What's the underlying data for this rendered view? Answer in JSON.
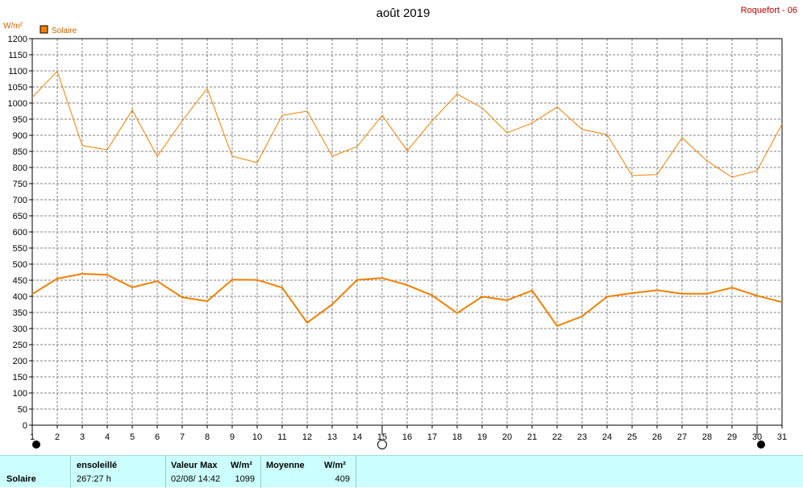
{
  "header": {
    "title": "août 2019",
    "station": "Roquefort - 06",
    "unit": "W/m²",
    "legend_label": "Solaire"
  },
  "colors": {
    "series": "#f08000",
    "station": "#c00000",
    "unit": "#d06000",
    "grid": "#808080",
    "footer_bg": "#ccffff"
  },
  "chart_data": {
    "type": "line",
    "title": "août 2019",
    "ylabel": "W/m²",
    "xlabel": "",
    "ylim": [
      0,
      1200
    ],
    "yticks": [
      0,
      50,
      100,
      150,
      200,
      250,
      300,
      350,
      400,
      450,
      500,
      550,
      600,
      650,
      700,
      750,
      800,
      850,
      900,
      950,
      1000,
      1050,
      1100,
      1150,
      1200
    ],
    "x": [
      1,
      2,
      3,
      4,
      5,
      6,
      7,
      8,
      9,
      10,
      11,
      12,
      13,
      14,
      15,
      16,
      17,
      18,
      19,
      20,
      21,
      22,
      23,
      24,
      25,
      26,
      27,
      28,
      29,
      30,
      31
    ],
    "grid": true,
    "legend_position": "top-left",
    "series": [
      {
        "name": "Solaire",
        "kind": "max",
        "values": [
          1018,
          1099,
          868,
          855,
          978,
          835,
          945,
          1045,
          835,
          815,
          962,
          975,
          835,
          865,
          962,
          852,
          945,
          1028,
          985,
          908,
          938,
          988,
          918,
          902,
          775,
          778,
          892,
          820,
          770,
          790,
          935
        ]
      },
      {
        "name": "Solaire",
        "kind": "moyenne",
        "values": [
          407,
          455,
          470,
          467,
          428,
          447,
          397,
          385,
          452,
          451,
          427,
          318,
          375,
          451,
          457,
          435,
          403,
          348,
          399,
          388,
          418,
          308,
          338,
          399,
          410,
          419,
          408,
          408,
          427,
          402,
          382
        ]
      }
    ],
    "moon_phases": [
      {
        "day": 1,
        "phase": "new"
      },
      {
        "day": 15,
        "phase": "full"
      },
      {
        "day": 30,
        "phase": "new"
      }
    ]
  },
  "footer": {
    "row_label": "Solaire",
    "sunshine_header": "ensoleillé",
    "sunshine_value": "267:27 h",
    "max_header": "Valeur Max",
    "max_unit": "W/m²",
    "max_datetime": "02/08/  14:42",
    "max_value": "1099",
    "avg_header": "Moyenne",
    "avg_unit": "W/m²",
    "avg_value": "409"
  }
}
